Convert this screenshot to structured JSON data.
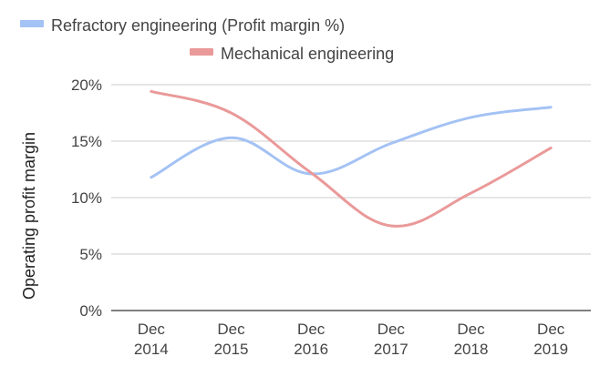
{
  "chart_data": {
    "type": "line",
    "categories": [
      [
        "Dec",
        "2014"
      ],
      [
        "Dec",
        "2015"
      ],
      [
        "Dec",
        "2016"
      ],
      [
        "Dec",
        "2017"
      ],
      [
        "Dec",
        "2018"
      ],
      [
        "Dec",
        "2019"
      ]
    ],
    "ylabel": "Operating profit margin",
    "y_ticks": [
      "0%",
      "5%",
      "10%",
      "15%",
      "20%"
    ],
    "ylim": [
      0,
      20
    ],
    "y_tick_values": [
      0,
      5,
      10,
      15,
      20
    ],
    "grid": true,
    "smooth": true,
    "legend_position": "top",
    "series": [
      {
        "name": "Refractory engineering (Profit margin %)",
        "color": "#a4c2f4",
        "values": [
          11.8,
          15.3,
          12.1,
          14.8,
          17.1,
          18.0
        ]
      },
      {
        "name": "Mechanical engineering",
        "color": "#ea9999",
        "values": [
          19.4,
          17.5,
          12.2,
          7.5,
          10.4,
          14.4
        ]
      }
    ]
  }
}
